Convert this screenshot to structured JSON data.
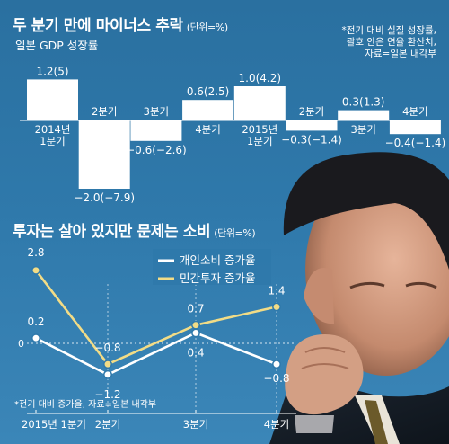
{
  "chart_data": [
    {
      "type": "bar",
      "title": "두 분기 만에 마이너스 추락",
      "unit": "(단위=%)",
      "subtitle": "일본 GDP 성장률",
      "note_lines": [
        "*전기 대비 실질 성장률,",
        "괄호 안은 연율 환산치,",
        "자료=일본 내각부"
      ],
      "categories": [
        "2014년 1분기",
        "2분기",
        "3분기",
        "4분기",
        "2015년 1분기",
        "2분기",
        "3분기",
        "4분기"
      ],
      "values": [
        1.2,
        -2.0,
        -0.6,
        0.6,
        1.0,
        -0.3,
        0.3,
        -0.4
      ],
      "annualized": [
        5,
        -7.9,
        -2.6,
        2.5,
        4.2,
        -1.4,
        1.3,
        -1.4
      ],
      "value_labels": [
        "1.2(5)",
        "−2.0(−7.9)",
        "−0.6(−2.6)",
        "0.6(2.5)",
        "1.0(4.2)",
        "−0.3(−1.4)",
        "0.3(1.3)",
        "−0.4(−1.4)"
      ],
      "category_labels": [
        [
          "2014년",
          "1분기"
        ],
        [
          "2분기"
        ],
        [
          "3분기"
        ],
        [
          "4분기"
        ],
        [
          "2015년",
          "1분기"
        ],
        [
          "2분기"
        ],
        [
          "3분기"
        ],
        [
          "4분기"
        ]
      ],
      "bar_color": "#ffffff"
    },
    {
      "type": "line",
      "title": "투자는 살아 있지만 문제는 소비",
      "unit": "(단위=%)",
      "categories": [
        "2015년  1분기",
        "2분기",
        "3분기",
        "4분기"
      ],
      "series": [
        {
          "name": "개인소비 증가율",
          "color": "#ffffff",
          "values": [
            0.2,
            -1.2,
            0.4,
            -0.8
          ],
          "labels": [
            "0.2",
            "−1.2",
            "0.4",
            "−0.8"
          ]
        },
        {
          "name": "민간투자 증가율",
          "color": "#f2dc86",
          "values": [
            2.8,
            -0.8,
            0.7,
            1.4
          ],
          "labels": [
            "2.8",
            "−0.8",
            "0.7",
            "1.4"
          ]
        }
      ],
      "zero_label": "0",
      "ylim": [
        -1.6,
        3.2
      ],
      "grid": false,
      "legend_position": "top-center",
      "note": "*전기 대비 증가율, 자료=일본 내각부"
    }
  ],
  "colors": {
    "background": "#2f79ab",
    "text": "#ffffff",
    "investment_line": "#f2dc86"
  }
}
